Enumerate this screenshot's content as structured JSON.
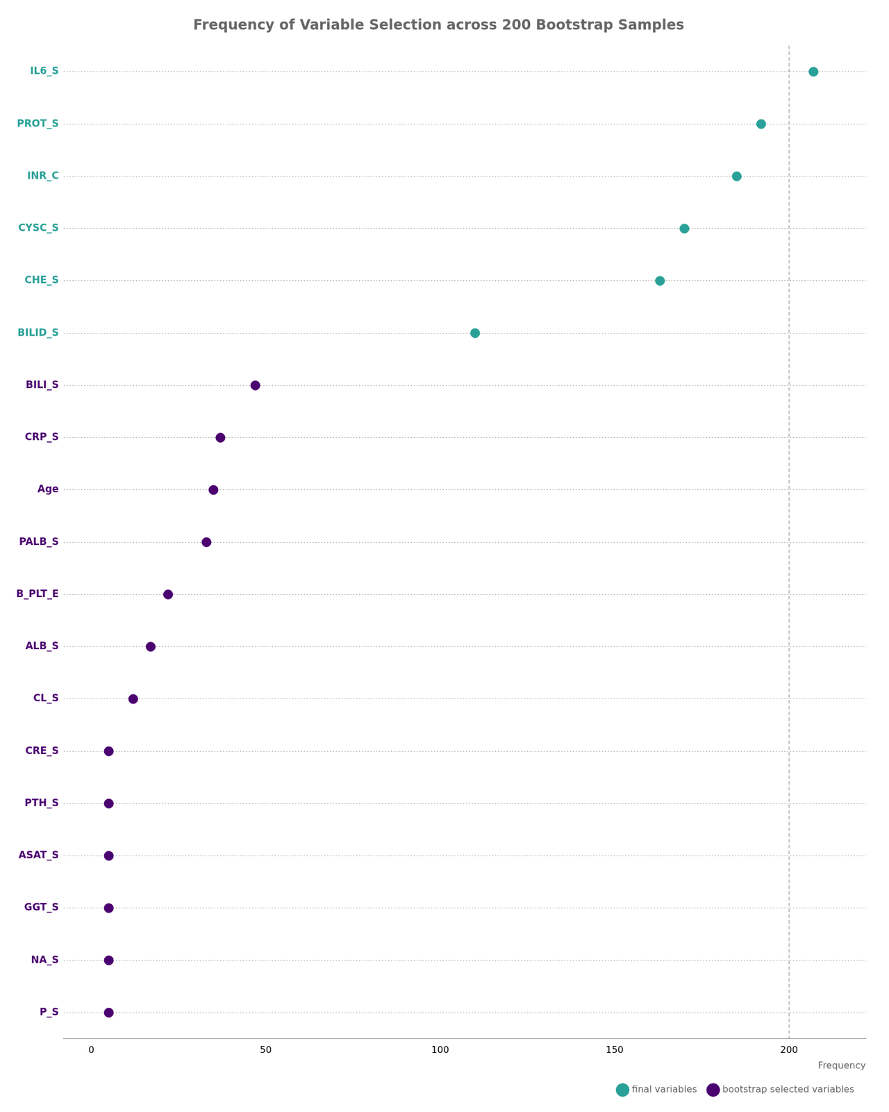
{
  "chart_data": {
    "type": "scatter",
    "orientation": "horizontal",
    "title": "Frequency of Variable Selection across 200 Bootstrap Samples",
    "xlabel": "Frequency",
    "categories": [
      "IL6_S",
      "PROT_S",
      "INR_C",
      "CYSC_S",
      "CHE_S",
      "BILID_S",
      "BILI_S",
      "CRP_S",
      "Age",
      "PALB_S",
      "B_PLT_E",
      "ALB_S",
      "CL_S",
      "CRE_S",
      "PTH_S",
      "ASAT_S",
      "GGT_S",
      "NA_S",
      "P_S"
    ],
    "series": [
      {
        "name": "final variables",
        "color": "#2aa198",
        "marker": "circle",
        "values": [
          207,
          192,
          185,
          170,
          163,
          110,
          null,
          null,
          null,
          null,
          null,
          null,
          null,
          null,
          null,
          null,
          null,
          null,
          null
        ]
      },
      {
        "name": "bootstrap selected variables",
        "color": "#4b0070",
        "marker": "circle",
        "values": [
          null,
          null,
          null,
          null,
          null,
          null,
          47,
          37,
          35,
          33,
          22,
          17,
          12,
          5,
          5,
          5,
          5,
          5,
          5
        ]
      }
    ],
    "xlim": [
      -8,
      222
    ],
    "xticks": [
      0,
      50,
      100,
      150,
      200
    ],
    "reference_x": 200,
    "grid": "y",
    "legend": "lower right"
  }
}
